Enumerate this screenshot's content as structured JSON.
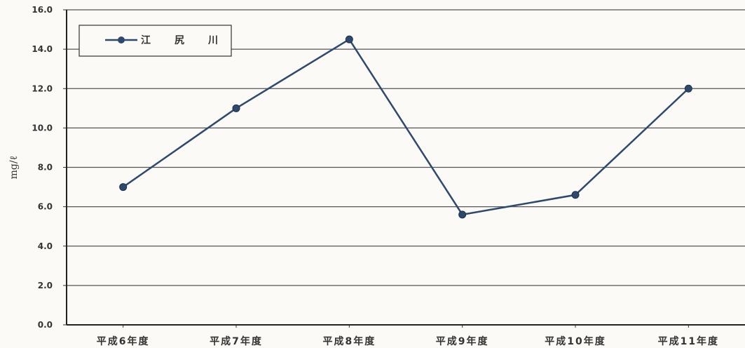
{
  "chart_data": {
    "type": "line",
    "categories": [
      "平成6年度",
      "平成7年度",
      "平成8年度",
      "平成9年度",
      "平成10年度",
      "平成11年度"
    ],
    "series": [
      {
        "name": "江　尻　川",
        "values": [
          7.0,
          11.0,
          14.5,
          5.6,
          6.6,
          12.0
        ],
        "color": "#2d4a6e"
      }
    ],
    "ylabel": "mg/ℓ",
    "ylim": [
      0,
      16
    ],
    "yticks": [
      "0.0",
      "2.0",
      "4.0",
      "6.0",
      "8.0",
      "10.0",
      "12.0",
      "14.0",
      "16.0"
    ],
    "grid": true,
    "legend_position": "top-left"
  }
}
